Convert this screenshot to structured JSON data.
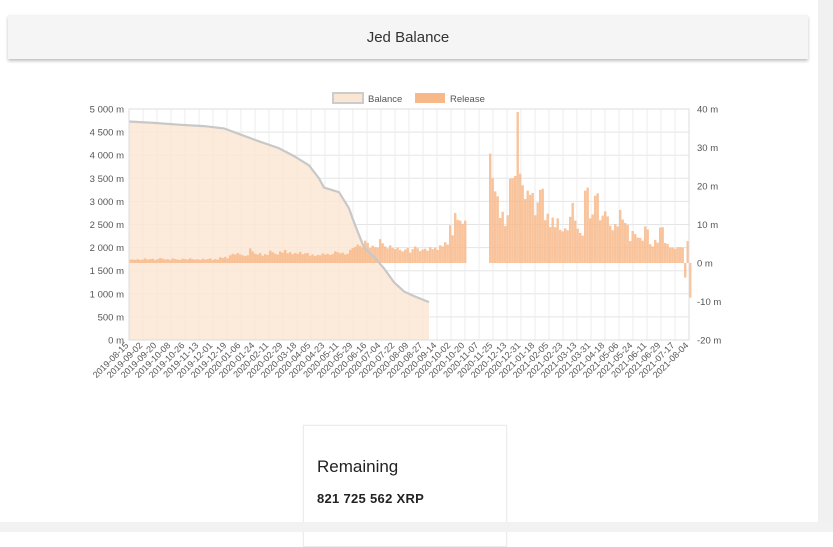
{
  "header": {
    "title": "Jed Balance"
  },
  "chart_data": {
    "type": "bar",
    "legend": [
      {
        "name": "Balance",
        "color": "#fbe6d3",
        "border": "#cccccc"
      },
      {
        "name": "Release",
        "color": "#f8b98a",
        "border": "#f8b98a"
      }
    ],
    "legend_position": "top-center",
    "grid": true,
    "y_left": {
      "min": 0,
      "max": 5000,
      "ticks": [
        "0 m",
        "500 m",
        "1 000 m",
        "1 500 m",
        "2 000 m",
        "2 500 m",
        "3 000 m",
        "3 500 m",
        "4 000 m",
        "4 500 m",
        "5 000 m"
      ]
    },
    "y_right": {
      "min": -20,
      "max": 40,
      "ticks": [
        "-20 m",
        "-10 m",
        "0 m",
        "10 m",
        "20 m",
        "30 m",
        "40 m"
      ]
    },
    "x_labels": [
      "2019-08-15",
      "2019-09-02",
      "2019-09-20",
      "2019-10-08",
      "2019-10-26",
      "2019-11-13",
      "2019-12-01",
      "2019-12-19",
      "2020-01-06",
      "2020-01-24",
      "2020-02-11",
      "2020-02-29",
      "2020-03-18",
      "2020-04-05",
      "2020-04-23",
      "2020-05-11",
      "2020-05-29",
      "2020-06-16",
      "2020-07-04",
      "2020-07-22",
      "2020-08-09",
      "2020-08-27",
      "2020-09-14",
      "2020-10-02",
      "2020-10-20",
      "2020-11-07",
      "2020-11-25",
      "2020-12-13",
      "2020-12-31",
      "2021-01-18",
      "2021-02-05",
      "2021-02-23",
      "2021-03-13",
      "2021-03-31",
      "2021-04-18",
      "2021-05-06",
      "2021-05-24",
      "2021-06-11",
      "2021-06-29",
      "2021-07-17",
      "2021-08-04"
    ],
    "series": [
      {
        "name": "Balance",
        "type": "area",
        "axis": "left",
        "points": [
          [
            0,
            4730
          ],
          [
            5,
            4700
          ],
          [
            10,
            4660
          ],
          [
            15,
            4630
          ],
          [
            19,
            4580
          ],
          [
            22,
            4460
          ],
          [
            26,
            4300
          ],
          [
            30,
            4150
          ],
          [
            33,
            3980
          ],
          [
            36,
            3780
          ],
          [
            38,
            3500
          ],
          [
            39,
            3300
          ],
          [
            42,
            3200
          ],
          [
            44,
            2850
          ],
          [
            45,
            2550
          ],
          [
            47,
            2000
          ],
          [
            49,
            1800
          ],
          [
            51,
            1550
          ],
          [
            53,
            1250
          ],
          [
            55,
            1050
          ],
          [
            57,
            950
          ],
          [
            60,
            820
          ]
        ]
      },
      {
        "name": "Release",
        "type": "bar",
        "axis": "right",
        "bars": [
          [
            0.0,
            0.9
          ],
          [
            0.5,
            0.9
          ],
          [
            1.0,
            0.8
          ],
          [
            1.5,
            1.0
          ],
          [
            2.0,
            0.8
          ],
          [
            2.5,
            0.9
          ],
          [
            3.0,
            1.2
          ],
          [
            3.5,
            0.9
          ],
          [
            4.0,
            1.0
          ],
          [
            4.5,
            1.1
          ],
          [
            5.0,
            0.8
          ],
          [
            5.5,
            1.0
          ],
          [
            6.0,
            1.3
          ],
          [
            6.5,
            1.1
          ],
          [
            7.0,
            0.9
          ],
          [
            7.5,
            1.0
          ],
          [
            8.0,
            0.8
          ],
          [
            8.5,
            1.2
          ],
          [
            9.0,
            1.0
          ],
          [
            9.5,
            0.9
          ],
          [
            10.0,
            0.8
          ],
          [
            10.5,
            1.1
          ],
          [
            11.0,
            1.0
          ],
          [
            11.5,
            0.9
          ],
          [
            12.0,
            1.2
          ],
          [
            12.5,
            1.0
          ],
          [
            13.0,
            0.9
          ],
          [
            13.5,
            1.0
          ],
          [
            14.0,
            0.8
          ],
          [
            14.5,
            1.1
          ],
          [
            15.0,
            0.9
          ],
          [
            15.5,
            1.0
          ],
          [
            16.0,
            1.2
          ],
          [
            16.5,
            0.8
          ],
          [
            17.0,
            1.0
          ],
          [
            17.5,
            0.9
          ],
          [
            18.0,
            1.5
          ],
          [
            18.5,
            1.3
          ],
          [
            19.0,
            1.6
          ],
          [
            19.5,
            1.2
          ],
          [
            20.0,
            2.0
          ],
          [
            20.5,
            2.4
          ],
          [
            21.0,
            2.2
          ],
          [
            21.5,
            2.6
          ],
          [
            22.0,
            2.2
          ],
          [
            22.5,
            2.0
          ],
          [
            23.0,
            1.8
          ],
          [
            23.5,
            2.0
          ],
          [
            24.0,
            3.8
          ],
          [
            24.5,
            3.0
          ],
          [
            25.0,
            2.4
          ],
          [
            25.5,
            2.2
          ],
          [
            26.0,
            2.6
          ],
          [
            26.5,
            1.9
          ],
          [
            27.0,
            2.3
          ],
          [
            27.5,
            2.1
          ],
          [
            28.0,
            3.2
          ],
          [
            28.5,
            2.8
          ],
          [
            29.0,
            2.4
          ],
          [
            29.5,
            2.2
          ],
          [
            30.0,
            3.0
          ],
          [
            30.5,
            2.7
          ],
          [
            31.0,
            3.4
          ],
          [
            31.5,
            2.5
          ],
          [
            32.0,
            2.8
          ],
          [
            32.5,
            2.3
          ],
          [
            33.0,
            2.6
          ],
          [
            33.5,
            2.4
          ],
          [
            34.0,
            2.9
          ],
          [
            34.5,
            2.3
          ],
          [
            35.0,
            2.5
          ],
          [
            35.5,
            2.6
          ],
          [
            36.0,
            1.9
          ],
          [
            36.5,
            2.2
          ],
          [
            37.0,
            1.8
          ],
          [
            37.5,
            2.1
          ],
          [
            38.0,
            2.0
          ],
          [
            38.5,
            2.5
          ],
          [
            39.0,
            2.2
          ],
          [
            39.5,
            2.4
          ],
          [
            40.0,
            2.1
          ],
          [
            40.5,
            2.3
          ],
          [
            41.0,
            3.0
          ],
          [
            41.5,
            2.8
          ],
          [
            42.0,
            2.5
          ],
          [
            42.5,
            2.7
          ],
          [
            43.0,
            2.2
          ],
          [
            43.5,
            2.4
          ],
          [
            44.0,
            3.4
          ],
          [
            44.5,
            3.9
          ],
          [
            45.0,
            4.2
          ],
          [
            45.5,
            4.8
          ],
          [
            46.0,
            4.4
          ],
          [
            46.5,
            4.0
          ],
          [
            47.0,
            5.8
          ],
          [
            47.5,
            5.2
          ],
          [
            48.0,
            3.9
          ],
          [
            48.5,
            4.5
          ],
          [
            49.0,
            4.1
          ],
          [
            49.5,
            4.0
          ],
          [
            50.0,
            6.2
          ],
          [
            50.5,
            5.1
          ],
          [
            51.0,
            4.3
          ],
          [
            51.5,
            3.8
          ],
          [
            52.0,
            4.6
          ],
          [
            52.5,
            3.9
          ],
          [
            53.0,
            3.6
          ],
          [
            53.5,
            4.0
          ],
          [
            54.0,
            3.4
          ],
          [
            54.5,
            3.0
          ],
          [
            55.0,
            3.5
          ],
          [
            55.5,
            3.9
          ],
          [
            56.0,
            2.7
          ],
          [
            56.5,
            3.6
          ],
          [
            57.0,
            4.3
          ],
          [
            57.5,
            3.8
          ],
          [
            58.0,
            3.1
          ],
          [
            58.5,
            3.5
          ],
          [
            59.0,
            3.7
          ],
          [
            59.5,
            3.2
          ],
          [
            60.0,
            4.1
          ],
          [
            60.5,
            3.6
          ],
          [
            61.0,
            4.0
          ],
          [
            61.5,
            3.4
          ],
          [
            62.0,
            4.6
          ],
          [
            62.5,
            4.3
          ],
          [
            63.0,
            5.4
          ],
          [
            63.5,
            4.8
          ],
          [
            64.0,
            9.8
          ],
          [
            64.5,
            7.2
          ],
          [
            65.0,
            13.0
          ],
          [
            65.5,
            11.2
          ],
          [
            66.0,
            11.0
          ],
          [
            66.5,
            10.2
          ],
          [
            67.0,
            11.0
          ],
          [
            68.0,
            0.0
          ],
          [
            70.0,
            0.0
          ],
          [
            71.0,
            0.0
          ],
          [
            72.0,
            28.4
          ],
          [
            72.5,
            22.0
          ],
          [
            73.0,
            18.6
          ],
          [
            73.5,
            17.3
          ],
          [
            74.0,
            11.7
          ],
          [
            74.5,
            13.3
          ],
          [
            75.0,
            9.6
          ],
          [
            75.5,
            12.4
          ],
          [
            76.0,
            21.9
          ],
          [
            76.5,
            22.0
          ],
          [
            77.0,
            22.6
          ],
          [
            77.5,
            39.2
          ],
          [
            78.0,
            23.2
          ],
          [
            78.5,
            20.2
          ],
          [
            79.0,
            16.6
          ],
          [
            79.5,
            18.8
          ],
          [
            80.0,
            17.7
          ],
          [
            80.5,
            18.2
          ],
          [
            81.0,
            12.4
          ],
          [
            81.5,
            15.7
          ],
          [
            82.0,
            19.0
          ],
          [
            82.5,
            19.3
          ],
          [
            83.0,
            11.1
          ],
          [
            83.5,
            12.8
          ],
          [
            84.0,
            9.3
          ],
          [
            84.5,
            11.8
          ],
          [
            85.0,
            9.3
          ],
          [
            85.5,
            11.6
          ],
          [
            86.0,
            8.6
          ],
          [
            86.5,
            8.2
          ],
          [
            87.0,
            9.0
          ],
          [
            87.5,
            8.5
          ],
          [
            88.0,
            12.0
          ],
          [
            88.5,
            15.6
          ],
          [
            89.0,
            11.0
          ],
          [
            89.5,
            8.9
          ],
          [
            90.0,
            7.8
          ],
          [
            90.5,
            7.1
          ],
          [
            91.0,
            18.8
          ],
          [
            91.5,
            19.6
          ],
          [
            92.0,
            11.6
          ],
          [
            92.5,
            12.6
          ],
          [
            93.0,
            17.5
          ],
          [
            93.5,
            18.1
          ],
          [
            94.0,
            11.1
          ],
          [
            94.5,
            12.3
          ],
          [
            95.0,
            13.4
          ],
          [
            95.5,
            12.1
          ],
          [
            96.0,
            9.7
          ],
          [
            96.5,
            8.5
          ],
          [
            97.0,
            10.1
          ],
          [
            97.5,
            9.5
          ],
          [
            98.0,
            13.8
          ],
          [
            98.5,
            11.3
          ],
          [
            99.0,
            10.4
          ],
          [
            99.5,
            9.9
          ],
          [
            100.0,
            5.7
          ],
          [
            100.5,
            8.3
          ],
          [
            101.0,
            7.5
          ],
          [
            101.5,
            6.6
          ],
          [
            102.0,
            6.5
          ],
          [
            102.5,
            5.8
          ],
          [
            103.0,
            9.5
          ],
          [
            103.5,
            8.7
          ],
          [
            104.0,
            4.9
          ],
          [
            104.5,
            4.3
          ],
          [
            105.0,
            6.0
          ],
          [
            105.5,
            5.3
          ],
          [
            106.0,
            9.2
          ],
          [
            106.5,
            9.3
          ],
          [
            107.0,
            5.2
          ],
          [
            107.5,
            4.9
          ],
          [
            108.0,
            4.0
          ],
          [
            108.5,
            4.0
          ],
          [
            109.0,
            3.7
          ],
          [
            109.5,
            4.1
          ],
          [
            110.0,
            4.1
          ],
          [
            110.5,
            4.0
          ],
          [
            111.0,
            -3.8
          ],
          [
            111.5,
            5.7
          ],
          [
            112.0,
            -9.0
          ]
        ]
      }
    ]
  },
  "card": {
    "title": "Remaining",
    "value": "821 725 562 XRP"
  }
}
